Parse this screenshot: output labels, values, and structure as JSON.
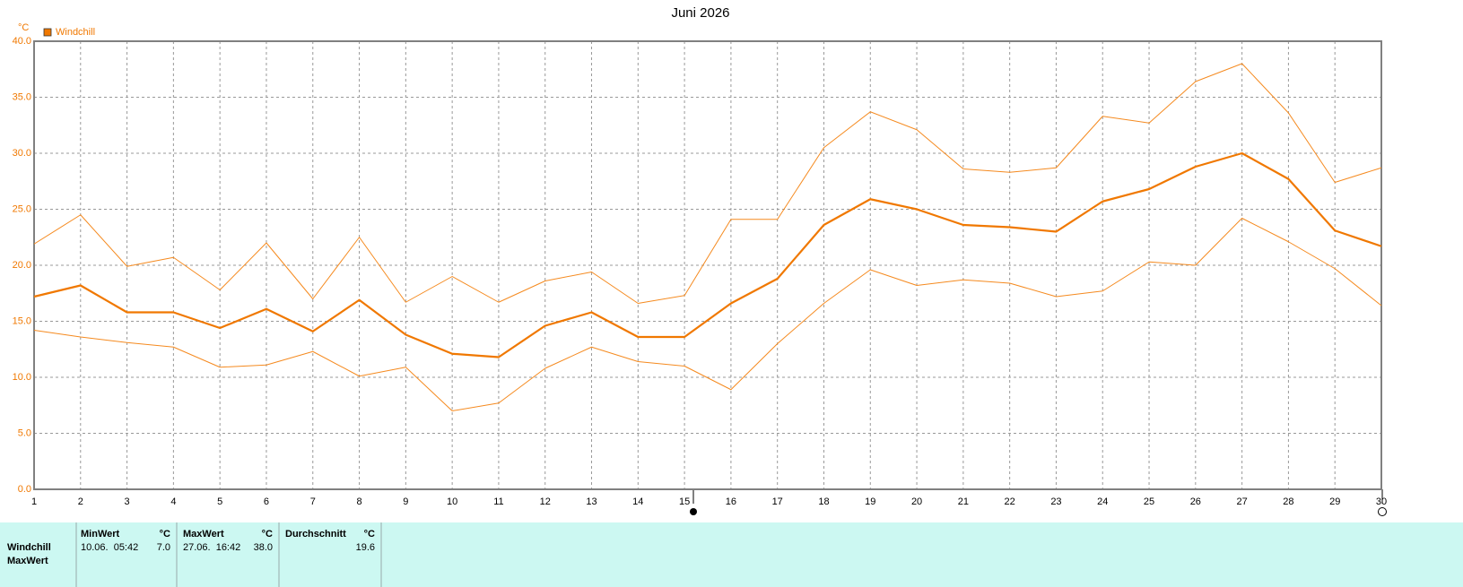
{
  "chart_data": {
    "type": "line",
    "title": "Juni 2026",
    "y_unit": "°C",
    "x": [
      1,
      2,
      3,
      4,
      5,
      6,
      7,
      8,
      9,
      10,
      11,
      12,
      13,
      14,
      15,
      16,
      17,
      18,
      19,
      20,
      21,
      22,
      23,
      24,
      25,
      26,
      27,
      28,
      29,
      30
    ],
    "xlim": [
      1,
      30
    ],
    "xticks": [
      1,
      2,
      3,
      4,
      5,
      6,
      7,
      8,
      9,
      10,
      11,
      12,
      13,
      14,
      15,
      16,
      17,
      18,
      19,
      20,
      21,
      22,
      23,
      24,
      25,
      26,
      27,
      28,
      29,
      30
    ],
    "ylim": [
      0,
      40
    ],
    "yticks": [
      {
        "value": 0,
        "label": "0.0"
      },
      {
        "value": 5,
        "label": "5.0"
      },
      {
        "value": 10,
        "label": "10.0"
      },
      {
        "value": 15,
        "label": "15.0"
      },
      {
        "value": 20,
        "label": "20.0"
      },
      {
        "value": 25,
        "label": "25.0"
      },
      {
        "value": 30,
        "label": "30.0"
      },
      {
        "value": 35,
        "label": "35.0"
      },
      {
        "value": 40,
        "label": "40.0"
      }
    ],
    "grid": true,
    "series": [
      {
        "name": "Windchill",
        "color": "#f07800",
        "values": [
          17.2,
          18.2,
          15.8,
          15.8,
          14.4,
          16.1,
          14.1,
          16.9,
          13.8,
          12.1,
          11.8,
          14.6,
          15.8,
          13.6,
          13.6,
          16.6,
          18.8,
          23.6,
          25.9,
          25.0,
          23.6,
          23.4,
          23.0,
          25.7,
          26.8,
          28.8,
          30.0,
          27.7,
          23.1,
          21.7
        ]
      },
      {
        "color": "#f58a1f",
        "values": [
          21.9,
          24.5,
          19.9,
          20.7,
          17.8,
          22.0,
          17.0,
          22.5,
          16.7,
          19.0,
          16.7,
          18.6,
          19.4,
          16.6,
          17.3,
          24.1,
          24.1,
          30.5,
          33.7,
          32.1,
          28.6,
          28.3,
          28.7,
          33.3,
          32.7,
          36.4,
          38.0,
          33.6,
          27.4,
          28.7
        ]
      },
      {
        "color": "#f58a1f",
        "values": [
          14.2,
          13.6,
          13.1,
          12.7,
          10.9,
          11.1,
          12.3,
          10.1,
          10.9,
          7.0,
          7.7,
          10.8,
          12.7,
          11.4,
          11.0,
          8.9,
          13.0,
          16.6,
          19.6,
          18.2,
          18.7,
          18.4,
          17.2,
          17.7,
          20.3,
          20.0,
          24.2,
          22.1,
          19.7,
          16.4
        ]
      }
    ]
  },
  "table": {
    "header": [
      "MinWert",
      "°C",
      "MaxWert",
      "°C",
      "Durchschnitt",
      "°C"
    ],
    "rows": [
      [
        "Windchill",
        "10.06.  05:42",
        "7.0",
        "27.06.  16:42",
        "38.0",
        "19.6"
      ],
      [
        "MaxWert"
      ]
    ]
  }
}
